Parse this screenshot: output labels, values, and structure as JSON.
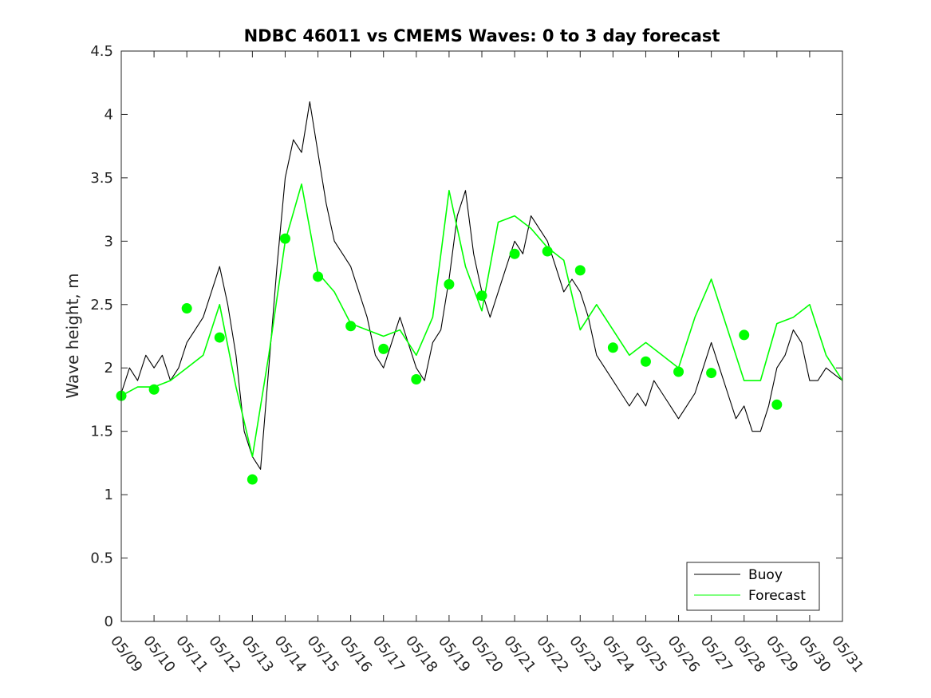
{
  "chart_data": {
    "type": "line",
    "title": "NDBC 46011 vs CMEMS Waves: 0 to 3 day forecast",
    "xlabel": "",
    "ylabel": "Wave height, m",
    "ylim": [
      0,
      4.5
    ],
    "yticks": [
      "0",
      "0.5",
      "1",
      "1.5",
      "2",
      "2.5",
      "3",
      "3.5",
      "4",
      "4.5"
    ],
    "xlim_days": [
      0,
      22
    ],
    "xticks": [
      "05/09",
      "05/10",
      "05/11",
      "05/12",
      "05/13",
      "05/14",
      "05/15",
      "05/16",
      "05/17",
      "05/18",
      "05/19",
      "05/20",
      "05/21",
      "05/22",
      "05/23",
      "05/24",
      "05/25",
      "05/26",
      "05/27",
      "05/28",
      "05/29",
      "05/30",
      "05/31"
    ],
    "grid": false,
    "legend_position": "bottom-right",
    "colors": {
      "buoy": "#000000",
      "forecast": "#00ff00",
      "axis": "#262626"
    },
    "series": [
      {
        "name": "Buoy",
        "style": "line",
        "x": [
          0,
          0.25,
          0.5,
          0.75,
          1,
          1.25,
          1.5,
          1.75,
          2,
          2.25,
          2.5,
          2.75,
          3,
          3.25,
          3.5,
          3.75,
          4,
          4.25,
          4.5,
          4.75,
          5,
          5.25,
          5.5,
          5.75,
          6,
          6.25,
          6.5,
          6.75,
          7,
          7.25,
          7.5,
          7.75,
          8,
          8.25,
          8.5,
          8.75,
          9,
          9.25,
          9.5,
          9.75,
          10,
          10.25,
          10.5,
          10.75,
          11,
          11.25,
          11.5,
          11.75,
          12,
          12.25,
          12.5,
          12.75,
          13,
          13.25,
          13.5,
          13.75,
          14,
          14.25,
          14.5,
          14.75,
          15,
          15.25,
          15.5,
          15.75,
          16,
          16.25,
          16.5,
          16.75,
          17,
          17.25,
          17.5,
          17.75,
          18,
          18.25,
          18.5,
          18.75,
          19,
          19.25,
          19.5,
          19.75,
          20,
          20.25,
          20.5,
          20.75,
          21,
          21.25,
          21.5,
          21.75,
          22
        ],
        "y": [
          1.8,
          2.0,
          1.9,
          2.1,
          2.0,
          2.1,
          1.9,
          2.0,
          2.2,
          2.3,
          2.4,
          2.6,
          2.8,
          2.5,
          2.1,
          1.5,
          1.3,
          1.2,
          2.0,
          2.8,
          3.5,
          3.8,
          3.7,
          4.1,
          3.7,
          3.3,
          3.0,
          2.9,
          2.8,
          2.6,
          2.4,
          2.1,
          2.0,
          2.2,
          2.4,
          2.2,
          2.0,
          1.9,
          2.2,
          2.3,
          2.7,
          3.2,
          3.4,
          2.9,
          2.6,
          2.4,
          2.6,
          2.8,
          3.0,
          2.9,
          3.2,
          3.1,
          3.0,
          2.8,
          2.6,
          2.7,
          2.6,
          2.4,
          2.1,
          2.0,
          1.9,
          1.8,
          1.7,
          1.8,
          1.7,
          1.9,
          1.8,
          1.7,
          1.6,
          1.7,
          1.8,
          2.0,
          2.2,
          2.0,
          1.8,
          1.6,
          1.7,
          1.5,
          1.5,
          1.7,
          2.0,
          2.1,
          2.3,
          2.2,
          1.9,
          1.9,
          2.0,
          1.95,
          1.9
        ],
        "color": "#000000"
      },
      {
        "name": "Forecast",
        "style": "line",
        "x": [
          0,
          0.5,
          1,
          1.5,
          2,
          2.5,
          3,
          3.5,
          4,
          4.5,
          5,
          5.5,
          6,
          6.5,
          7,
          7.5,
          8,
          8.5,
          9,
          9.5,
          10,
          10.5,
          11,
          11.5,
          12,
          12.5,
          13,
          13.5,
          14,
          14.5,
          15,
          15.5,
          16,
          16.5,
          17,
          17.5,
          18,
          18.5,
          19,
          19.5,
          20,
          20.5,
          21,
          21.5,
          22
        ],
        "y": [
          1.78,
          1.85,
          1.85,
          1.9,
          2.0,
          2.1,
          2.5,
          1.85,
          1.3,
          2.1,
          3.0,
          3.45,
          2.75,
          2.6,
          2.35,
          2.3,
          2.25,
          2.3,
          2.1,
          2.4,
          3.4,
          2.8,
          2.45,
          3.15,
          3.2,
          3.1,
          2.95,
          2.85,
          2.3,
          2.5,
          2.3,
          2.1,
          2.2,
          2.1,
          2.0,
          2.4,
          2.7,
          2.3,
          1.9,
          1.9,
          2.35,
          2.4,
          2.5,
          2.1,
          1.9
        ],
        "color": "#00ff00"
      },
      {
        "name": "",
        "style": "markers",
        "x": [
          0,
          1,
          2,
          3,
          4,
          5,
          6,
          7,
          8,
          9,
          10,
          11,
          12,
          13,
          14,
          15,
          16,
          17,
          18,
          19,
          20
        ],
        "y": [
          1.78,
          1.83,
          2.47,
          2.24,
          1.12,
          3.02,
          2.72,
          2.33,
          2.15,
          1.91,
          2.66,
          2.57,
          2.9,
          2.92,
          2.77,
          2.16,
          2.05,
          1.97,
          1.96,
          2.26,
          1.71
        ],
        "color": "#00ff00"
      }
    ]
  },
  "legend": {
    "items": [
      {
        "label": "Buoy",
        "color": "#000000"
      },
      {
        "label": "Forecast",
        "color": "#00ff00"
      }
    ]
  }
}
